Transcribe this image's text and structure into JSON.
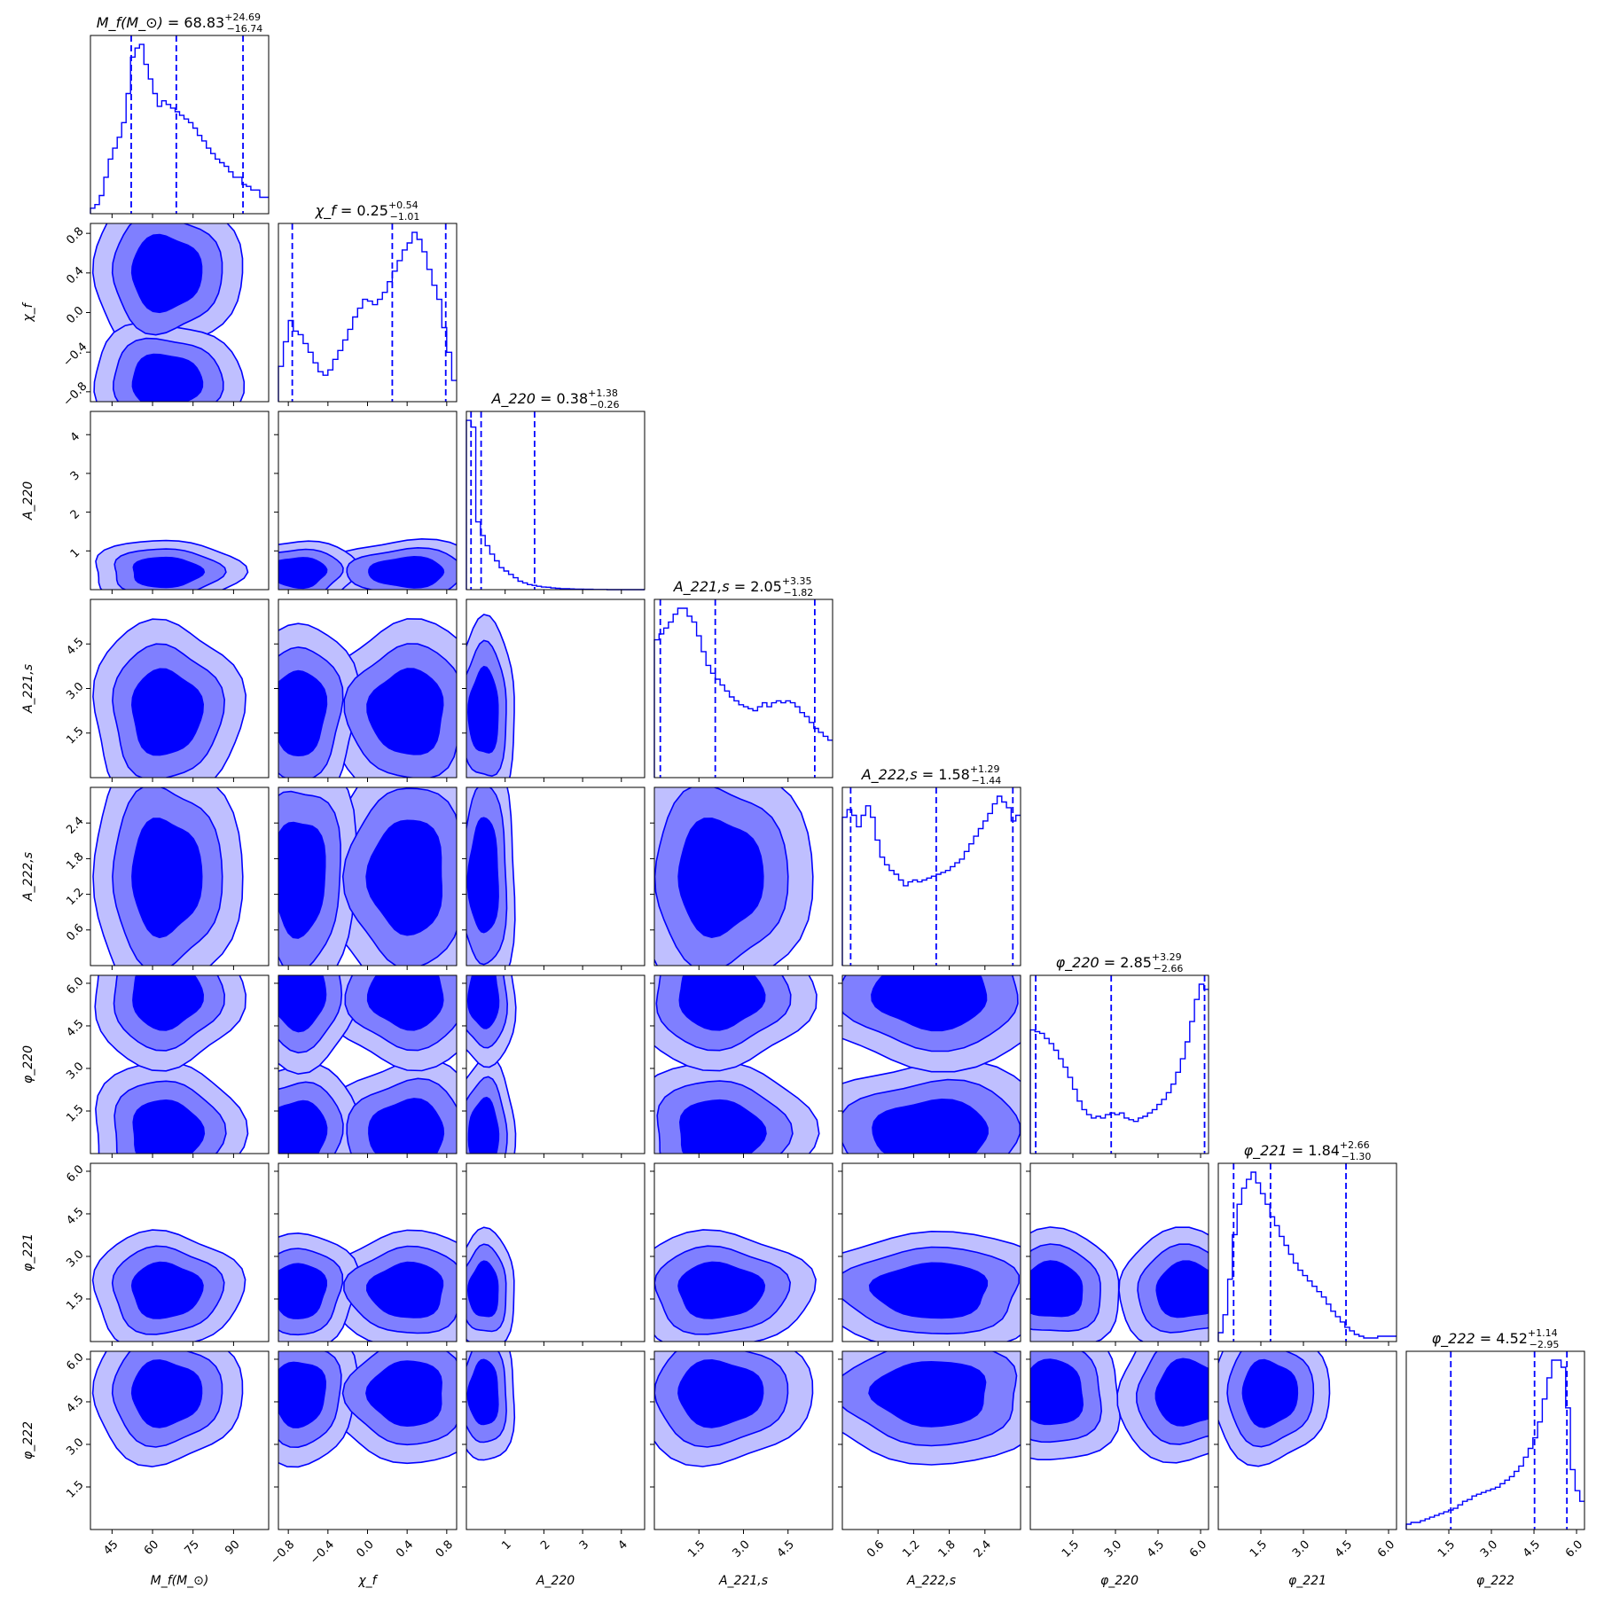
{
  "chart_data": {
    "type": "corner",
    "colors": {
      "line": "#0000ff",
      "c1": "#0000ff",
      "c2": "#7f7fff",
      "c3": "#bfbfff"
    },
    "parameters": [
      {
        "key": "M_f",
        "label": "M_f(M_⊙)",
        "sub": "",
        "title_lhs": "M_f(M_⊙)",
        "median": "68.83",
        "plus": "+24.69",
        "minus": "−16.74",
        "range": [
          37,
          103
        ],
        "ticks": [
          45,
          60,
          75,
          90
        ],
        "tick_labels": [
          "45",
          "60",
          "75",
          "90"
        ],
        "quantile_lines": [
          52.1,
          68.8,
          93.5
        ]
      },
      {
        "key": "chi_f",
        "label": "χ_f",
        "title_lhs": "χ_f",
        "median": "0.25",
        "plus": "+0.54",
        "minus": "−1.01",
        "range": [
          -0.9,
          0.9
        ],
        "ticks": [
          -0.8,
          -0.4,
          0.0,
          0.4,
          0.8
        ],
        "tick_labels": [
          "−0.8",
          "−0.4",
          "0.0",
          "0.4",
          "0.8"
        ],
        "quantile_lines": [
          -0.76,
          0.25,
          0.79
        ]
      },
      {
        "key": "A220",
        "label": "A_220",
        "title_lhs": "A_220",
        "median": "0.38",
        "plus": "+1.38",
        "minus": "−0.26",
        "range": [
          0.0,
          4.6
        ],
        "ticks": [
          1,
          2,
          3,
          4
        ],
        "tick_labels": [
          "1",
          "2",
          "3",
          "4"
        ],
        "quantile_lines": [
          0.12,
          0.38,
          1.76
        ]
      },
      {
        "key": "A221s",
        "label": "A_221,s",
        "title_lhs": "A_221,s",
        "median": "2.05",
        "plus": "+3.35",
        "minus": "−1.82",
        "range": [
          0.0,
          6.0
        ],
        "ticks": [
          1.5,
          3.0,
          4.5
        ],
        "tick_labels": [
          "1.5",
          "3.0",
          "4.5"
        ],
        "quantile_lines": [
          0.2,
          2.05,
          5.4
        ]
      },
      {
        "key": "A222s",
        "label": "A_222,s",
        "title_lhs": "A_222,s",
        "median": "1.58",
        "plus": "+1.29",
        "minus": "−1.44",
        "range": [
          0.0,
          3.0
        ],
        "ticks": [
          0.6,
          1.2,
          1.8,
          2.4
        ],
        "tick_labels": [
          "0.6",
          "1.2",
          "1.8",
          "2.4"
        ],
        "quantile_lines": [
          0.14,
          1.58,
          2.87
        ]
      },
      {
        "key": "phi220",
        "label": "φ_220",
        "title_lhs": "φ_220",
        "median": "2.85",
        "plus": "+3.29",
        "minus": "−2.66",
        "range": [
          0.0,
          6.28
        ],
        "ticks": [
          1.5,
          3.0,
          4.5,
          6.0
        ],
        "tick_labels": [
          "1.5",
          "3.0",
          "4.5",
          "6.0"
        ],
        "quantile_lines": [
          0.19,
          2.85,
          6.14
        ]
      },
      {
        "key": "phi221",
        "label": "φ_221",
        "title_lhs": "φ_221",
        "median": "1.84",
        "plus": "+2.66",
        "minus": "−1.30",
        "range": [
          0.0,
          6.28
        ],
        "ticks": [
          1.5,
          3.0,
          4.5,
          6.0
        ],
        "tick_labels": [
          "1.5",
          "3.0",
          "4.5",
          "6.0"
        ],
        "quantile_lines": [
          0.54,
          1.84,
          4.5
        ]
      },
      {
        "key": "phi222",
        "label": "φ_222",
        "title_lhs": "φ_222",
        "median": "4.52",
        "plus": "+1.14",
        "minus": "−2.95",
        "range": [
          0.0,
          6.28
        ],
        "ticks": [
          1.5,
          3.0,
          4.5,
          6.0
        ],
        "tick_labels": [
          "1.5",
          "3.0",
          "4.5",
          "6.0"
        ],
        "quantile_lines": [
          1.57,
          4.52,
          5.66
        ]
      }
    ],
    "hist": {
      "M_f": [
        0.3,
        0.5,
        1.0,
        2.0,
        3.0,
        3.6,
        4.2,
        5.0,
        6.6,
        8.6,
        9.1,
        9.3,
        8.2,
        7.4,
        6.6,
        5.9,
        6.2,
        6.0,
        5.8,
        5.6,
        5.4,
        5.2,
        5.0,
        4.7,
        4.3,
        4.0,
        3.6,
        3.3,
        3.0,
        2.8,
        2.6,
        2.3,
        2.0,
        2.0,
        1.6,
        1.5,
        1.3,
        1.3,
        0.9,
        0.9
      ],
      "chi_f": [
        2.0,
        3.4,
        4.6,
        4.0,
        3.8,
        3.3,
        2.8,
        2.2,
        1.7,
        1.5,
        1.8,
        2.4,
        2.9,
        3.5,
        4.1,
        4.8,
        5.3,
        5.8,
        5.7,
        5.5,
        5.8,
        6.2,
        6.8,
        7.4,
        8.0,
        8.6,
        9.0,
        9.6,
        9.2,
        8.5,
        7.5,
        6.6,
        5.8,
        4.2,
        2.8,
        1.2
      ],
      "A220": [
        10.0,
        9.6,
        4.0,
        3.2,
        2.6,
        2.1,
        1.7,
        1.3,
        1.1,
        0.9,
        0.7,
        0.5,
        0.4,
        0.3,
        0.25,
        0.2,
        0.15,
        0.14,
        0.1,
        0.08,
        0.06,
        0.05,
        0.04,
        0.03,
        0.03,
        0.02,
        0.02,
        0.01,
        0.01,
        0.01,
        0.0,
        0.0,
        0.0,
        0.0,
        0.0,
        0.0,
        0.0,
        0.0
      ],
      "A221s": [
        7.0,
        7.3,
        7.6,
        7.9,
        8.3,
        8.6,
        8.6,
        8.2,
        7.9,
        7.2,
        6.4,
        5.7,
        5.3,
        5.0,
        4.7,
        4.4,
        4.1,
        3.9,
        3.7,
        3.6,
        3.5,
        3.4,
        3.6,
        3.8,
        3.6,
        3.8,
        3.9,
        3.8,
        3.9,
        3.8,
        3.6,
        3.3,
        3.1,
        2.8,
        2.5,
        2.3,
        2.1,
        1.9
      ],
      "A222s": [
        7.8,
        8.2,
        7.9,
        7.3,
        7.9,
        8.4,
        7.8,
        6.6,
        5.7,
        5.3,
        5.0,
        4.8,
        4.5,
        4.2,
        4.4,
        4.5,
        4.4,
        4.5,
        4.6,
        4.7,
        4.8,
        4.9,
        5.0,
        5.2,
        5.4,
        5.6,
        6.0,
        6.4,
        6.8,
        7.2,
        7.6,
        8.0,
        8.5,
        8.9,
        8.6,
        8.3,
        7.6,
        7.9
      ],
      "phi220": [
        7.3,
        7.2,
        7.1,
        6.8,
        6.5,
        6.1,
        5.6,
        5.1,
        4.5,
        3.8,
        3.1,
        2.6,
        2.3,
        2.1,
        2.2,
        2.1,
        2.3,
        2.4,
        2.3,
        2.4,
        2.1,
        2.0,
        1.9,
        2.1,
        2.2,
        2.4,
        2.6,
        2.9,
        3.2,
        3.6,
        4.1,
        4.8,
        5.6,
        6.6,
        7.8,
        9.1,
        10.0,
        9.7
      ],
      "phi221": [
        0.5,
        1.5,
        3.5,
        6.0,
        7.7,
        8.6,
        9.1,
        9.5,
        8.9,
        8.3,
        7.7,
        7.0,
        6.5,
        5.9,
        5.4,
        4.9,
        4.4,
        4.0,
        3.7,
        3.4,
        3.1,
        2.8,
        2.5,
        2.1,
        1.7,
        1.4,
        1.1,
        0.8,
        0.6,
        0.4,
        0.3,
        0.2,
        0.2,
        0.2,
        0.3,
        0.3,
        0.3,
        0.3
      ],
      "phi222": [
        0.3,
        0.4,
        0.4,
        0.5,
        0.6,
        0.7,
        0.8,
        0.9,
        1.0,
        1.1,
        1.2,
        1.4,
        1.6,
        1.7,
        1.9,
        2.0,
        2.1,
        2.2,
        2.3,
        2.4,
        2.6,
        2.8,
        3.0,
        3.3,
        3.6,
        4.1,
        4.6,
        5.2,
        6.1,
        7.4,
        8.6,
        9.6,
        9.6,
        9.2,
        6.9,
        3.4,
        2.2,
        1.6
      ]
    }
  }
}
